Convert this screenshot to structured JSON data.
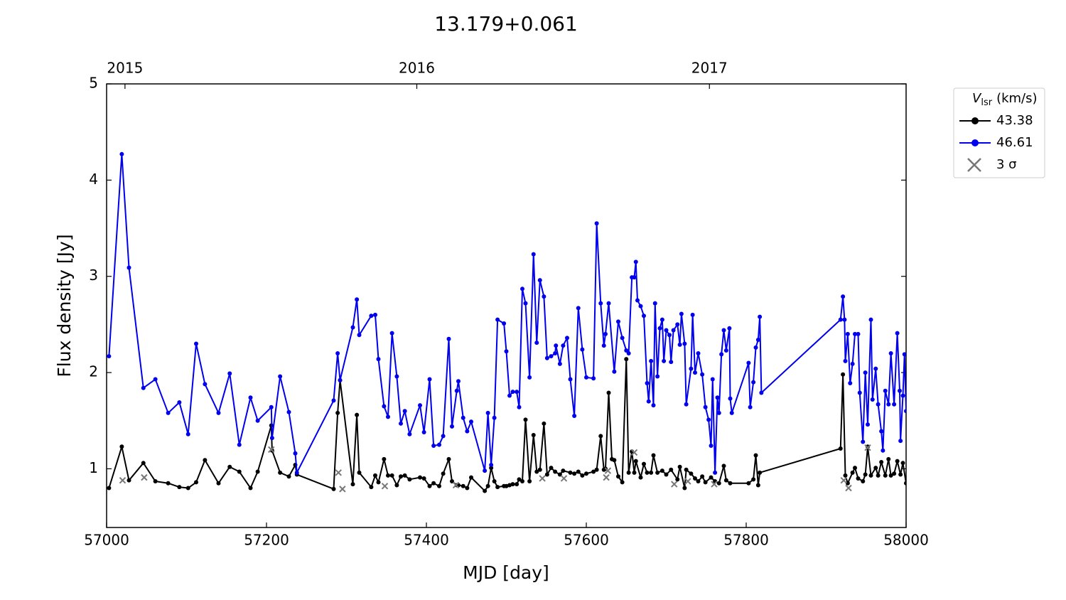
{
  "chart_data": {
    "type": "line",
    "title": "13.179+0.061",
    "xlabel": "MJD [day]",
    "ylabel": "Flux density [Jy]",
    "xlim": [
      57000,
      58000
    ],
    "xticks": [
      57000,
      57200,
      57400,
      57600,
      57800,
      58000
    ],
    "ylim": [
      0.39,
      5
    ],
    "yticks": [
      1,
      2,
      3,
      4,
      5
    ],
    "x2ticks": [
      {
        "value": 57023,
        "label": "2015"
      },
      {
        "value": 57388,
        "label": "2016"
      },
      {
        "value": 57754,
        "label": "2017"
      }
    ],
    "legend": {
      "title_symbol": "V",
      "title_subscript": "lsr",
      "title_unit": "(km/s)",
      "position": "outside-upper-right"
    },
    "series": [
      {
        "name": "43.38",
        "color": "#000000",
        "marker": "o",
        "line": true,
        "x": [
          57003,
          57019,
          57028,
          57046,
          57061,
          57077,
          57091,
          57102,
          57112,
          57123,
          57140,
          57154,
          57166,
          57180,
          57189,
          57206,
          57207,
          57217,
          57228,
          57236,
          57238,
          57284,
          57289,
          57292,
          57308,
          57313,
          57316,
          57331,
          57336,
          57340,
          57347,
          57352,
          57357,
          57363,
          57368,
          57373,
          57379,
          57392,
          57397,
          57404,
          57409,
          57416,
          57421,
          57428,
          57432,
          57438,
          57440,
          57446,
          57451,
          57456,
          57473,
          57477,
          57481,
          57485,
          57489,
          57497,
          57500,
          57504,
          57508,
          57513,
          57516,
          57520,
          57524,
          57529,
          57534,
          57538,
          57542,
          57547,
          57551,
          57556,
          57561,
          57567,
          57571,
          57580,
          57585,
          57590,
          57595,
          57600,
          57609,
          57613,
          57618,
          57622,
          57624,
          57628,
          57632,
          57635,
          57640,
          57645,
          57650,
          57653,
          57657,
          57660,
          57662,
          57668,
          57672,
          57676,
          57681,
          57684,
          57689,
          57695,
          57700,
          57706,
          57714,
          57717,
          57723,
          57725,
          57731,
          57736,
          57740,
          57745,
          57749,
          57756,
          57761,
          57766,
          57772,
          57775,
          57780,
          57803,
          57809,
          57812,
          57815,
          57817,
          57918,
          57921,
          57924,
          57927,
          57933,
          57936,
          57940,
          57946,
          57949,
          57952,
          57956,
          57962,
          57965,
          57969,
          57974,
          57978,
          57981,
          57985,
          57989,
          57993,
          57996,
          58000
        ],
        "values": [
          0.8,
          1.23,
          0.88,
          1.06,
          0.87,
          0.85,
          0.81,
          0.8,
          0.86,
          1.09,
          0.85,
          1.02,
          0.97,
          0.8,
          0.97,
          1.45,
          1.19,
          0.96,
          0.92,
          1.04,
          0.94,
          0.79,
          1.58,
          1.92,
          0.84,
          1.56,
          0.96,
          0.81,
          0.93,
          0.86,
          1.1,
          0.93,
          0.93,
          0.83,
          0.92,
          0.93,
          0.89,
          0.91,
          0.9,
          0.82,
          0.85,
          0.82,
          0.95,
          1.1,
          0.87,
          0.83,
          0.83,
          0.82,
          0.8,
          0.91,
          0.77,
          0.82,
          1.01,
          0.87,
          0.81,
          0.82,
          0.82,
          0.83,
          0.84,
          0.84,
          0.89,
          0.87,
          1.51,
          0.87,
          1.35,
          0.97,
          0.99,
          1.47,
          0.94,
          1.01,
          0.97,
          0.94,
          0.98,
          0.96,
          0.95,
          0.97,
          0.93,
          0.95,
          0.97,
          0.99,
          1.34,
          0.99,
          1.0,
          1.79,
          1.1,
          1.09,
          0.92,
          0.86,
          2.14,
          0.96,
          1.18,
          0.96,
          1.08,
          0.91,
          1.05,
          0.96,
          0.96,
          1.14,
          0.96,
          0.98,
          0.94,
          0.99,
          0.89,
          1.02,
          0.8,
          0.99,
          0.95,
          0.9,
          0.87,
          0.92,
          0.86,
          0.91,
          0.87,
          0.85,
          1.03,
          0.88,
          0.85,
          0.85,
          0.89,
          1.14,
          0.83,
          0.96,
          1.21,
          1.98,
          0.93,
          0.85,
          0.96,
          1.01,
          0.9,
          0.87,
          0.94,
          1.23,
          0.93,
          1.01,
          0.93,
          1.07,
          0.93,
          1.1,
          0.93,
          0.95,
          1.08,
          0.94,
          1.06,
          0.85
        ]
      },
      {
        "name": "46.61",
        "color": "#0000ee",
        "marker": "o",
        "line": true,
        "x": [
          57003,
          57019,
          57028,
          57046,
          57061,
          57077,
          57091,
          57102,
          57112,
          57123,
          57140,
          57154,
          57166,
          57180,
          57189,
          57206,
          57207,
          57217,
          57228,
          57236,
          57238,
          57284,
          57289,
          57292,
          57308,
          57313,
          57316,
          57331,
          57336,
          57340,
          57347,
          57352,
          57357,
          57363,
          57368,
          57373,
          57379,
          57392,
          57397,
          57404,
          57409,
          57416,
          57421,
          57428,
          57432,
          57438,
          57440,
          57446,
          57451,
          57456,
          57473,
          57477,
          57481,
          57485,
          57489,
          57497,
          57500,
          57504,
          57508,
          57513,
          57516,
          57520,
          57524,
          57529,
          57534,
          57538,
          57542,
          57547,
          57551,
          57556,
          57561,
          57562,
          57567,
          57571,
          57576,
          57580,
          57585,
          57590,
          57595,
          57600,
          57609,
          57613,
          57618,
          57622,
          57624,
          57628,
          57635,
          57640,
          57645,
          57650,
          57653,
          57657,
          57660,
          57662,
          57664,
          57668,
          57672,
          57676,
          57678,
          57681,
          57684,
          57686,
          57689,
          57692,
          57695,
          57697,
          57700,
          57704,
          57706,
          57709,
          57714,
          57717,
          57719,
          57723,
          57725,
          57731,
          57733,
          57736,
          57740,
          57745,
          57749,
          57753,
          57756,
          57758,
          57761,
          57764,
          57766,
          57769,
          57772,
          57775,
          57779,
          57780,
          57782,
          57803,
          57805,
          57809,
          57812,
          57815,
          57817,
          57819,
          57918,
          57921,
          57923,
          57924,
          57927,
          57930,
          57933,
          57936,
          57940,
          57942,
          57946,
          57949,
          57952,
          57956,
          57958,
          57962,
          57965,
          57969,
          57971,
          57974,
          57978,
          57981,
          57985,
          57989,
          57992,
          57993,
          57996,
          57998,
          58000
        ],
        "values": [
          2.17,
          4.27,
          3.09,
          1.84,
          1.93,
          1.58,
          1.69,
          1.36,
          2.3,
          1.88,
          1.58,
          1.99,
          1.25,
          1.74,
          1.5,
          1.64,
          1.32,
          1.96,
          1.59,
          1.16,
          0.96,
          1.71,
          2.2,
          1.92,
          2.47,
          2.76,
          2.39,
          2.59,
          2.6,
          2.14,
          1.65,
          1.54,
          2.41,
          1.96,
          1.47,
          1.6,
          1.36,
          1.66,
          1.38,
          1.93,
          1.24,
          1.25,
          1.34,
          2.35,
          1.44,
          1.81,
          1.91,
          1.53,
          1.39,
          1.49,
          0.98,
          1.58,
          1.04,
          1.53,
          2.55,
          2.51,
          2.22,
          1.76,
          1.8,
          1.8,
          1.64,
          2.87,
          2.72,
          1.95,
          3.23,
          2.31,
          2.96,
          2.79,
          2.15,
          2.17,
          2.2,
          2.28,
          2.09,
          2.28,
          2.36,
          1.93,
          1.55,
          2.67,
          2.24,
          1.95,
          1.94,
          3.55,
          2.72,
          2.28,
          2.4,
          2.72,
          2.01,
          2.53,
          2.36,
          2.23,
          2.2,
          2.99,
          2.99,
          3.15,
          2.75,
          2.69,
          2.59,
          1.89,
          1.7,
          2.12,
          1.66,
          2.72,
          1.96,
          2.46,
          2.55,
          2.12,
          2.44,
          2.39,
          2.11,
          2.44,
          2.5,
          2.29,
          2.61,
          2.3,
          1.67,
          2.04,
          2.6,
          2.0,
          2.2,
          1.98,
          1.64,
          1.51,
          1.24,
          1.93,
          0.96,
          1.74,
          1.58,
          2.19,
          2.44,
          2.23,
          2.46,
          1.73,
          1.58,
          2.1,
          1.64,
          1.9,
          2.26,
          2.34,
          2.58,
          1.79,
          2.55,
          2.79,
          2.55,
          2.12,
          2.4,
          1.89,
          2.09,
          2.4,
          2.4,
          1.79,
          1.28,
          2.0,
          1.46,
          2.55,
          1.72,
          2.04,
          1.67,
          1.39,
          1.19,
          1.81,
          1.67,
          2.2,
          1.67,
          2.41,
          1.81,
          1.29,
          1.76,
          2.19,
          1.6
        ]
      },
      {
        "name": "3 σ",
        "color": "#777777",
        "marker": "x",
        "line": false,
        "x": [
          57020,
          57047,
          57206,
          57290,
          57295,
          57348,
          57437,
          57545,
          57572,
          57625,
          57627,
          57660,
          57710,
          57727,
          57760,
          57922,
          57928,
          57952
        ],
        "values": [
          0.88,
          0.91,
          1.2,
          0.96,
          0.79,
          0.82,
          0.83,
          0.9,
          0.9,
          0.91,
          0.98,
          1.17,
          0.84,
          0.87,
          0.84,
          0.88,
          0.8,
          1.22
        ]
      }
    ]
  }
}
